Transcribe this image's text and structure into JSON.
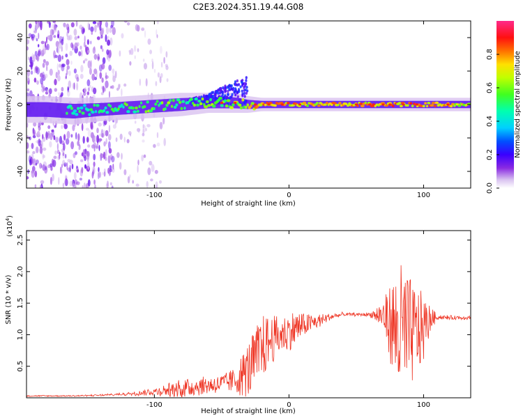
{
  "title": "C2E3.2024.351.19.44.G08",
  "colors": {
    "snr_line": "#ee3322",
    "track_core": "#33ee99",
    "track_halo": "#9922ee"
  },
  "chart_data": [
    {
      "type": "heatmap",
      "name": "spectrogram",
      "xlabel": "Height of straight line (km)",
      "ylabel": "Frequency (Hz)",
      "xlim": [
        -195,
        135
      ],
      "ylim": [
        -50,
        50
      ],
      "xticks": [
        -100,
        0,
        100
      ],
      "xtick_labels": [
        "-100",
        "0",
        "100"
      ],
      "yticks": [
        -40,
        -20,
        0,
        20,
        40
      ],
      "ytick_labels": [
        "-40",
        "-20",
        "0",
        "20",
        "40"
      ],
      "track": {
        "x": [
          -195,
          -180,
          -160,
          -140,
          -120,
          -100,
          -80,
          -60,
          -40,
          -30,
          -20,
          0,
          20,
          50,
          80,
          100,
          135
        ],
        "center_hz": [
          -3,
          -3,
          -4,
          -3,
          -2,
          -1,
          0,
          1,
          1,
          0,
          0,
          0,
          0,
          0,
          0,
          0,
          0
        ],
        "core_amp": [
          0.55,
          0.58,
          0.5,
          0.5,
          0.55,
          0.6,
          0.6,
          0.6,
          0.65,
          0.75,
          0.8,
          0.8,
          0.75,
          0.8,
          0.85,
          0.8,
          0.75
        ],
        "halo_width_hz": [
          8,
          8,
          8,
          7,
          7,
          7,
          7,
          6,
          6,
          5,
          4,
          4,
          4,
          4,
          4,
          4,
          4
        ],
        "upward_branch": {
          "x": [
            -75,
            -60,
            -50,
            -40,
            -30
          ],
          "max_hz": [
            3,
            6,
            10,
            14,
            18
          ]
        }
      },
      "noise_region_x": [
        -195,
        -130
      ],
      "colorbar": {
        "label": "Normalized spectral amplitude",
        "range": [
          0,
          1
        ],
        "ticks": [
          0.0,
          0.2,
          0.4,
          0.6,
          0.8
        ],
        "tick_labels": [
          "0.0",
          "0.2",
          "0.4",
          "0.6",
          "0.8"
        ]
      }
    },
    {
      "type": "line",
      "name": "snr",
      "xlabel": "Height of straight line (km)",
      "ylabel": "SNR (10 * v/v)",
      "scale_label": "(x10",
      "scale_exp": "4",
      "scale_close": ")",
      "xlim": [
        -195,
        135
      ],
      "ylim": [
        0,
        2.65
      ],
      "xticks": [
        -100,
        0,
        100
      ],
      "xtick_labels": [
        "-100",
        "0",
        "100"
      ],
      "yticks": [
        0.5,
        1.0,
        1.5,
        2.0,
        2.5
      ],
      "ytick_labels": [
        "0.5",
        "1.0",
        "1.5",
        "2.0",
        "2.5"
      ],
      "x": [
        -195,
        -160,
        -140,
        -120,
        -100,
        -80,
        -70,
        -60,
        -50,
        -40,
        -35,
        -30,
        -25,
        -20,
        -15,
        -10,
        -5,
        0,
        5,
        10,
        20,
        30,
        40,
        50,
        60,
        70,
        75,
        80,
        85,
        90,
        95,
        100,
        105,
        110,
        120,
        135
      ],
      "baseline": [
        0.03,
        0.03,
        0.04,
        0.06,
        0.1,
        0.14,
        0.18,
        0.2,
        0.22,
        0.28,
        0.35,
        0.45,
        0.6,
        0.78,
        0.9,
        0.96,
        1.0,
        1.05,
        1.1,
        1.15,
        1.2,
        1.28,
        1.32,
        1.32,
        1.32,
        1.3,
        1.2,
        1.05,
        1.0,
        1.0,
        1.05,
        1.1,
        1.25,
        1.28,
        1.27,
        1.27
      ],
      "amplitude": [
        0.0,
        0.0,
        0.01,
        0.02,
        0.06,
        0.15,
        0.15,
        0.14,
        0.15,
        0.2,
        0.35,
        0.45,
        0.5,
        0.55,
        0.4,
        0.35,
        0.3,
        0.3,
        0.3,
        0.2,
        0.12,
        0.06,
        0.03,
        0.02,
        0.03,
        0.25,
        0.6,
        1.0,
        1.2,
        0.9,
        0.7,
        0.55,
        0.2,
        0.04,
        0.03,
        0.03
      ]
    }
  ]
}
